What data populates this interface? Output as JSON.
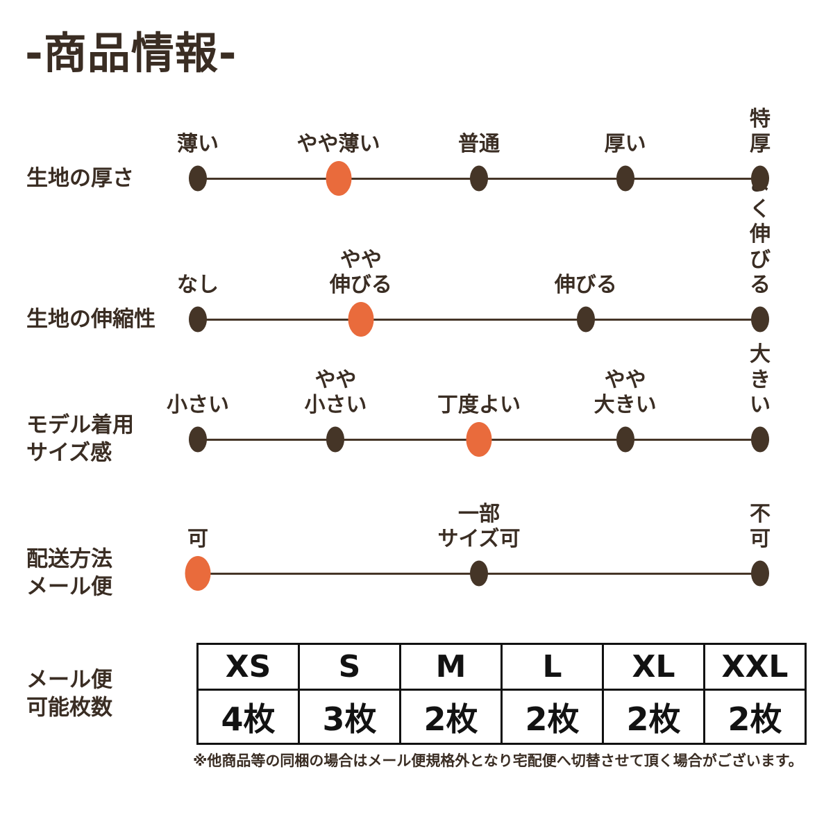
{
  "page": {
    "title": "-商品情報-",
    "footnote": "※他商品等の同梱の場合はメール便規格外となり宅配便へ切替させて頂く場合がございます。"
  },
  "colors": {
    "text": "#3a2d23",
    "line": "#453527",
    "dot": "#453527",
    "dot_selected": "#e96b3c",
    "table_border": "#111111",
    "table_text": "#121212"
  },
  "chart_data": {
    "type": "rating-scales",
    "title": "商品情報",
    "scales": [
      {
        "label": "生地の厚さ",
        "selected_value": "やや薄い",
        "options": [
          {
            "label": "薄い",
            "pos": 0,
            "selected": false
          },
          {
            "label": "やや薄い",
            "pos": 25,
            "selected": true
          },
          {
            "label": "普通",
            "pos": 50,
            "selected": false
          },
          {
            "label": "厚い",
            "pos": 76,
            "selected": false
          },
          {
            "label": "特厚",
            "pos": 100,
            "selected": false
          }
        ]
      },
      {
        "label": "生地の伸縮性",
        "selected_value": "やや伸びる",
        "options": [
          {
            "label": "なし",
            "pos": 0,
            "selected": false
          },
          {
            "label": "やや\n伸びる",
            "pos": 29,
            "selected": true
          },
          {
            "label": "伸びる",
            "pos": 69,
            "selected": false
          },
          {
            "label": "よく\n伸びる",
            "pos": 100,
            "selected": false
          }
        ]
      },
      {
        "label": "モデル着用\nサイズ感",
        "selected_value": "丁度よい",
        "options": [
          {
            "label": "小さい",
            "pos": 0,
            "selected": false
          },
          {
            "label": "やや\n小さい",
            "pos": 24.5,
            "selected": false
          },
          {
            "label": "丁度よい",
            "pos": 50,
            "selected": true
          },
          {
            "label": "やや\n大きい",
            "pos": 76,
            "selected": false
          },
          {
            "label": "大きい",
            "pos": 100,
            "selected": false
          }
        ]
      },
      {
        "label": "配送方法\nメール便",
        "selected_value": "可",
        "options": [
          {
            "label": "可",
            "pos": 0,
            "selected": true
          },
          {
            "label": "一部\nサイズ可",
            "pos": 50,
            "selected": false
          },
          {
            "label": "不可",
            "pos": 100,
            "selected": false
          }
        ]
      }
    ],
    "table": {
      "label": "メール便\n可能枚数",
      "columns": [
        "XS",
        "S",
        "M",
        "L",
        "XL",
        "XXL"
      ],
      "values": [
        "4枚",
        "3枚",
        "2枚",
        "2枚",
        "2枚",
        "2枚"
      ]
    }
  }
}
